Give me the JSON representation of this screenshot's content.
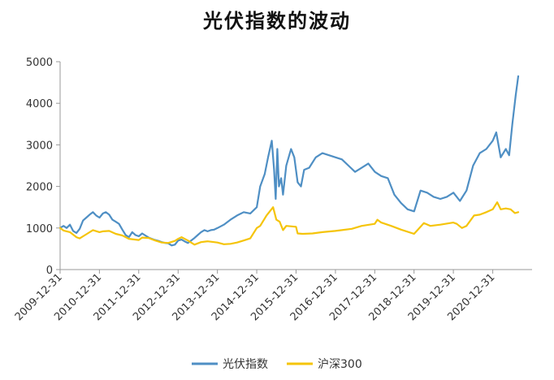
{
  "chart_data": {
    "type": "line",
    "title": "光伏指数的波动",
    "ylim": [
      0,
      5000
    ],
    "yticks": [
      "0",
      "1000",
      "2000",
      "3000",
      "4000",
      "5000"
    ],
    "xlim": [
      "2009-12-31",
      "2021-12-31"
    ],
    "xticks": [
      "2009-12-31",
      "2010-12-31",
      "2011-12-31",
      "2012-12-31",
      "2013-12-31",
      "2014-12-31",
      "2015-12-31",
      "2016-12-31",
      "2017-12-31",
      "2018-12-31",
      "2019-12-31",
      "2020-12-31"
    ],
    "legend_position": "bottom",
    "series": [
      {
        "name": "光伏指数",
        "color": "#4f8fc4",
        "points": [
          [
            "2009-12-31",
            1000
          ],
          [
            "2010-02-01",
            1050
          ],
          [
            "2010-03-01",
            1000
          ],
          [
            "2010-04-01",
            1080
          ],
          [
            "2010-05-01",
            930
          ],
          [
            "2010-06-01",
            880
          ],
          [
            "2010-07-01",
            980
          ],
          [
            "2010-08-01",
            1180
          ],
          [
            "2010-09-01",
            1250
          ],
          [
            "2010-10-01",
            1320
          ],
          [
            "2010-11-01",
            1380
          ],
          [
            "2010-12-01",
            1300
          ],
          [
            "2011-01-01",
            1250
          ],
          [
            "2011-02-01",
            1350
          ],
          [
            "2011-03-01",
            1380
          ],
          [
            "2011-04-01",
            1320
          ],
          [
            "2011-05-01",
            1200
          ],
          [
            "2011-06-01",
            1150
          ],
          [
            "2011-07-01",
            1100
          ],
          [
            "2011-08-01",
            960
          ],
          [
            "2011-09-01",
            830
          ],
          [
            "2011-10-01",
            780
          ],
          [
            "2011-11-01",
            900
          ],
          [
            "2011-12-01",
            830
          ],
          [
            "2012-01-01",
            800
          ],
          [
            "2012-02-01",
            870
          ],
          [
            "2012-03-01",
            820
          ],
          [
            "2012-04-01",
            770
          ],
          [
            "2012-05-01",
            740
          ],
          [
            "2012-06-01",
            710
          ],
          [
            "2012-07-01",
            690
          ],
          [
            "2012-08-01",
            660
          ],
          [
            "2012-09-01",
            640
          ],
          [
            "2012-10-01",
            630
          ],
          [
            "2012-11-01",
            580
          ],
          [
            "2012-12-01",
            600
          ],
          [
            "2013-01-01",
            700
          ],
          [
            "2013-02-01",
            720
          ],
          [
            "2013-03-01",
            680
          ],
          [
            "2013-04-01",
            640
          ],
          [
            "2013-05-01",
            700
          ],
          [
            "2013-06-01",
            760
          ],
          [
            "2013-07-01",
            830
          ],
          [
            "2013-08-01",
            900
          ],
          [
            "2013-09-01",
            950
          ],
          [
            "2013-10-01",
            920
          ],
          [
            "2013-11-01",
            950
          ],
          [
            "2013-12-01",
            960
          ],
          [
            "2014-01-01",
            1000
          ],
          [
            "2014-03-01",
            1080
          ],
          [
            "2014-05-01",
            1200
          ],
          [
            "2014-07-01",
            1300
          ],
          [
            "2014-09-01",
            1380
          ],
          [
            "2014-11-01",
            1350
          ],
          [
            "2014-12-31",
            1500
          ],
          [
            "2015-02-01",
            2000
          ],
          [
            "2015-03-15",
            2300
          ],
          [
            "2015-04-15",
            2700
          ],
          [
            "2015-05-20",
            3100
          ],
          [
            "2015-06-10",
            2400
          ],
          [
            "2015-06-25",
            1700
          ],
          [
            "2015-07-10",
            2900
          ],
          [
            "2015-07-25",
            2000
          ],
          [
            "2015-08-15",
            2200
          ],
          [
            "2015-09-01",
            1800
          ],
          [
            "2015-10-01",
            2500
          ],
          [
            "2015-11-15",
            2900
          ],
          [
            "2015-12-15",
            2700
          ],
          [
            "2016-01-15",
            2100
          ],
          [
            "2016-02-15",
            2000
          ],
          [
            "2016-03-15",
            2400
          ],
          [
            "2016-05-01",
            2450
          ],
          [
            "2016-07-01",
            2700
          ],
          [
            "2016-09-01",
            2800
          ],
          [
            "2016-11-01",
            2750
          ],
          [
            "2017-01-01",
            2700
          ],
          [
            "2017-03-01",
            2650
          ],
          [
            "2017-05-01",
            2500
          ],
          [
            "2017-07-01",
            2350
          ],
          [
            "2017-09-01",
            2450
          ],
          [
            "2017-11-01",
            2550
          ],
          [
            "2018-01-01",
            2350
          ],
          [
            "2018-03-01",
            2250
          ],
          [
            "2018-05-01",
            2200
          ],
          [
            "2018-07-01",
            1800
          ],
          [
            "2018-09-01",
            1600
          ],
          [
            "2018-11-01",
            1450
          ],
          [
            "2019-01-01",
            1400
          ],
          [
            "2019-03-01",
            1900
          ],
          [
            "2019-05-01",
            1850
          ],
          [
            "2019-07-01",
            1750
          ],
          [
            "2019-09-01",
            1700
          ],
          [
            "2019-11-01",
            1750
          ],
          [
            "2020-01-01",
            1850
          ],
          [
            "2020-03-01",
            1650
          ],
          [
            "2020-05-01",
            1900
          ],
          [
            "2020-07-01",
            2500
          ],
          [
            "2020-09-01",
            2800
          ],
          [
            "2020-11-01",
            2900
          ],
          [
            "2020-12-31",
            3100
          ],
          [
            "2021-02-01",
            3300
          ],
          [
            "2021-03-15",
            2700
          ],
          [
            "2021-05-01",
            2900
          ],
          [
            "2021-06-01",
            2750
          ],
          [
            "2021-07-01",
            3500
          ],
          [
            "2021-08-01",
            4200
          ],
          [
            "2021-08-25",
            4650
          ]
        ]
      },
      {
        "name": "沪深300",
        "color": "#f5c40a",
        "points": [
          [
            "2009-12-31",
            1000
          ],
          [
            "2010-02-01",
            940
          ],
          [
            "2010-04-01",
            900
          ],
          [
            "2010-06-01",
            780
          ],
          [
            "2010-07-01",
            750
          ],
          [
            "2010-09-01",
            850
          ],
          [
            "2010-11-01",
            950
          ],
          [
            "2010-12-31",
            900
          ],
          [
            "2011-02-01",
            920
          ],
          [
            "2011-04-01",
            930
          ],
          [
            "2011-06-01",
            860
          ],
          [
            "2011-08-01",
            820
          ],
          [
            "2011-10-01",
            740
          ],
          [
            "2011-12-31",
            710
          ],
          [
            "2012-02-01",
            770
          ],
          [
            "2012-04-01",
            760
          ],
          [
            "2012-06-01",
            700
          ],
          [
            "2012-08-01",
            650
          ],
          [
            "2012-10-01",
            640
          ],
          [
            "2012-12-01",
            690
          ],
          [
            "2013-01-01",
            740
          ],
          [
            "2013-02-01",
            780
          ],
          [
            "2013-04-01",
            700
          ],
          [
            "2013-06-01",
            600
          ],
          [
            "2013-08-01",
            660
          ],
          [
            "2013-10-01",
            680
          ],
          [
            "2013-12-31",
            650
          ],
          [
            "2014-03-01",
            610
          ],
          [
            "2014-05-01",
            620
          ],
          [
            "2014-07-01",
            650
          ],
          [
            "2014-09-01",
            700
          ],
          [
            "2014-11-01",
            750
          ],
          [
            "2014-12-31",
            1000
          ],
          [
            "2015-02-01",
            1050
          ],
          [
            "2015-04-01",
            1300
          ],
          [
            "2015-06-01",
            1500
          ],
          [
            "2015-07-01",
            1200
          ],
          [
            "2015-08-01",
            1150
          ],
          [
            "2015-09-01",
            950
          ],
          [
            "2015-10-01",
            1050
          ],
          [
            "2015-12-31",
            1030
          ],
          [
            "2016-01-15",
            870
          ],
          [
            "2016-03-01",
            860
          ],
          [
            "2016-06-01",
            870
          ],
          [
            "2016-09-01",
            900
          ],
          [
            "2016-12-31",
            930
          ],
          [
            "2017-03-01",
            950
          ],
          [
            "2017-06-01",
            980
          ],
          [
            "2017-09-01",
            1050
          ],
          [
            "2017-12-31",
            1100
          ],
          [
            "2018-01-25",
            1200
          ],
          [
            "2018-03-01",
            1130
          ],
          [
            "2018-06-01",
            1050
          ],
          [
            "2018-09-01",
            960
          ],
          [
            "2018-12-31",
            860
          ],
          [
            "2019-02-01",
            950
          ],
          [
            "2019-04-01",
            1120
          ],
          [
            "2019-06-01",
            1050
          ],
          [
            "2019-09-01",
            1080
          ],
          [
            "2019-12-31",
            1130
          ],
          [
            "2020-02-01",
            1100
          ],
          [
            "2020-03-20",
            1000
          ],
          [
            "2020-05-01",
            1050
          ],
          [
            "2020-07-10",
            1300
          ],
          [
            "2020-09-01",
            1320
          ],
          [
            "2020-11-01",
            1380
          ],
          [
            "2020-12-31",
            1450
          ],
          [
            "2021-02-10",
            1620
          ],
          [
            "2021-03-15",
            1450
          ],
          [
            "2021-05-01",
            1470
          ],
          [
            "2021-06-15",
            1450
          ],
          [
            "2021-07-25",
            1360
          ],
          [
            "2021-08-25",
            1380
          ]
        ]
      }
    ]
  }
}
